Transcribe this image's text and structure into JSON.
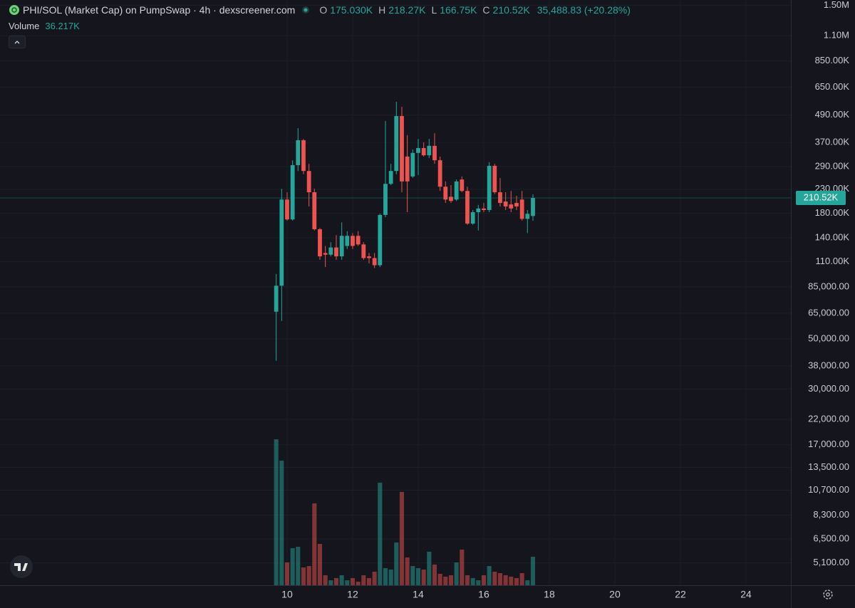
{
  "chart_data": {
    "type": "candlestick",
    "title": "PHI/SOL (Market Cap) on PumpSwap · 4h · dexscreener.com",
    "ohlc_keys": [
      "O",
      "H",
      "L",
      "C"
    ],
    "ohlc_labels": [
      "175.030K",
      "218.27K",
      "166.75K",
      "210.52K"
    ],
    "change_label": "35,488.83 (+20.28%)",
    "log": true,
    "grid": true,
    "up_color": "#26a69a",
    "down_color": "#ef5350",
    "xlim": [
      1.24,
      25.37
    ],
    "xticks": [
      10,
      12,
      14,
      16,
      18,
      20,
      22,
      24
    ],
    "ylim": [
      4060,
      1583000
    ],
    "yticks": [
      {
        "value": 1500000,
        "label": "1.50M"
      },
      {
        "value": 1100000,
        "label": "1.10M"
      },
      {
        "value": 850000,
        "label": "850.00K"
      },
      {
        "value": 650000,
        "label": "650.00K"
      },
      {
        "value": 490000,
        "label": "490.00K"
      },
      {
        "value": 370000,
        "label": "370.00K"
      },
      {
        "value": 290000,
        "label": "290.00K"
      },
      {
        "value": 230000,
        "label": "230.00K"
      },
      {
        "value": 180000,
        "label": "180.00K"
      },
      {
        "value": 140000,
        "label": "140.00K"
      },
      {
        "value": 110000,
        "label": "110.00K"
      },
      {
        "value": 85000,
        "label": "85,000.00"
      },
      {
        "value": 65000,
        "label": "65,000.00"
      },
      {
        "value": 50000,
        "label": "50,000.00"
      },
      {
        "value": 38000,
        "label": "38,000.00"
      },
      {
        "value": 30000,
        "label": "30,000.00"
      },
      {
        "value": 22000,
        "label": "22,000.00"
      },
      {
        "value": 17000,
        "label": "17,000.00"
      },
      {
        "value": 13500,
        "label": "13,500.00"
      },
      {
        "value": 10700,
        "label": "10,700.00"
      },
      {
        "value": 8300,
        "label": "8,300.00"
      },
      {
        "value": 6500,
        "label": "6,500.00"
      },
      {
        "value": 5100,
        "label": "5,100.00"
      }
    ],
    "x": [
      9.667,
      9.833,
      10,
      10.167,
      10.333,
      10.5,
      10.667,
      10.833,
      11,
      11.167,
      11.333,
      11.5,
      11.667,
      11.833,
      12,
      12.167,
      12.333,
      12.5,
      12.667,
      12.833,
      13,
      13.167,
      13.333,
      13.5,
      13.667,
      13.833,
      14,
      14.167,
      14.333,
      14.5,
      14.667,
      14.833,
      15,
      15.167,
      15.333,
      15.5,
      15.667,
      15.833,
      16,
      16.167,
      16.333,
      16.5,
      16.667,
      16.833,
      17,
      17.167,
      17.333,
      17.5
    ],
    "open": [
      66000,
      86000,
      207000,
      169000,
      294000,
      379000,
      277000,
      223000,
      153000,
      120000,
      118000,
      127000,
      116000,
      129000,
      143000,
      143000,
      131000,
      116000,
      114000,
      106000,
      177000,
      243000,
      277000,
      485000,
      321000,
      262000,
      333000,
      350000,
      325000,
      358000,
      309000,
      236000,
      213000,
      207000,
      254000,
      226000,
      162000,
      182000,
      189000,
      186000,
      292000,
      223000,
      203000,
      197000,
      200000,
      207000,
      170000,
      175030
    ],
    "high": [
      97000,
      231000,
      223000,
      309000,
      429000,
      384000,
      298000,
      231000,
      155000,
      129000,
      134000,
      144000,
      164000,
      150000,
      147000,
      150000,
      134000,
      120000,
      120000,
      179000,
      461000,
      298000,
      561000,
      533000,
      399000,
      345000,
      384000,
      371000,
      384000,
      407000,
      321000,
      249000,
      240000,
      254000,
      262000,
      236000,
      186000,
      196000,
      200000,
      303000,
      298000,
      258000,
      223000,
      226000,
      215000,
      226000,
      186000,
      218270
    ],
    "low": [
      40000,
      60000,
      167000,
      167000,
      277000,
      268000,
      193000,
      151000,
      112000,
      104000,
      116000,
      112000,
      112000,
      125000,
      125000,
      129000,
      112000,
      108000,
      103000,
      104000,
      173000,
      240000,
      268000,
      223000,
      182000,
      258000,
      266000,
      321000,
      316000,
      298000,
      226000,
      200000,
      200000,
      204000,
      223000,
      160000,
      160000,
      151000,
      182000,
      182000,
      219000,
      193000,
      186000,
      182000,
      186000,
      167000,
      147000,
      166750
    ],
    "close": [
      86000,
      207000,
      169000,
      294000,
      379000,
      277000,
      223000,
      153000,
      116000,
      118000,
      127000,
      116000,
      143000,
      143000,
      129000,
      131000,
      114000,
      114000,
      106000,
      177000,
      243000,
      277000,
      485000,
      249000,
      249000,
      333000,
      350000,
      325000,
      358000,
      309000,
      236000,
      207000,
      204000,
      249000,
      226000,
      162000,
      182000,
      189000,
      186000,
      292000,
      223000,
      200000,
      193000,
      189000,
      193000,
      170000,
      179000,
      210520
    ],
    "volume": {
      "name": "Volume",
      "label": "36.217K",
      "values": [
        185600,
        158400,
        29000,
        47100,
        48900,
        22600,
        24400,
        104100,
        52500,
        12700,
        6300,
        9100,
        12700,
        6300,
        9100,
        4500,
        12700,
        9100,
        17200,
        130400,
        21700,
        19900,
        54300,
        118600,
        35300,
        24400,
        21700,
        19900,
        42600,
        26300,
        14500,
        10900,
        12700,
        29000,
        45300,
        12700,
        9100,
        6300,
        12700,
        24400,
        17200,
        15400,
        12700,
        10900,
        9100,
        15400,
        6300,
        36217
      ]
    }
  }
}
